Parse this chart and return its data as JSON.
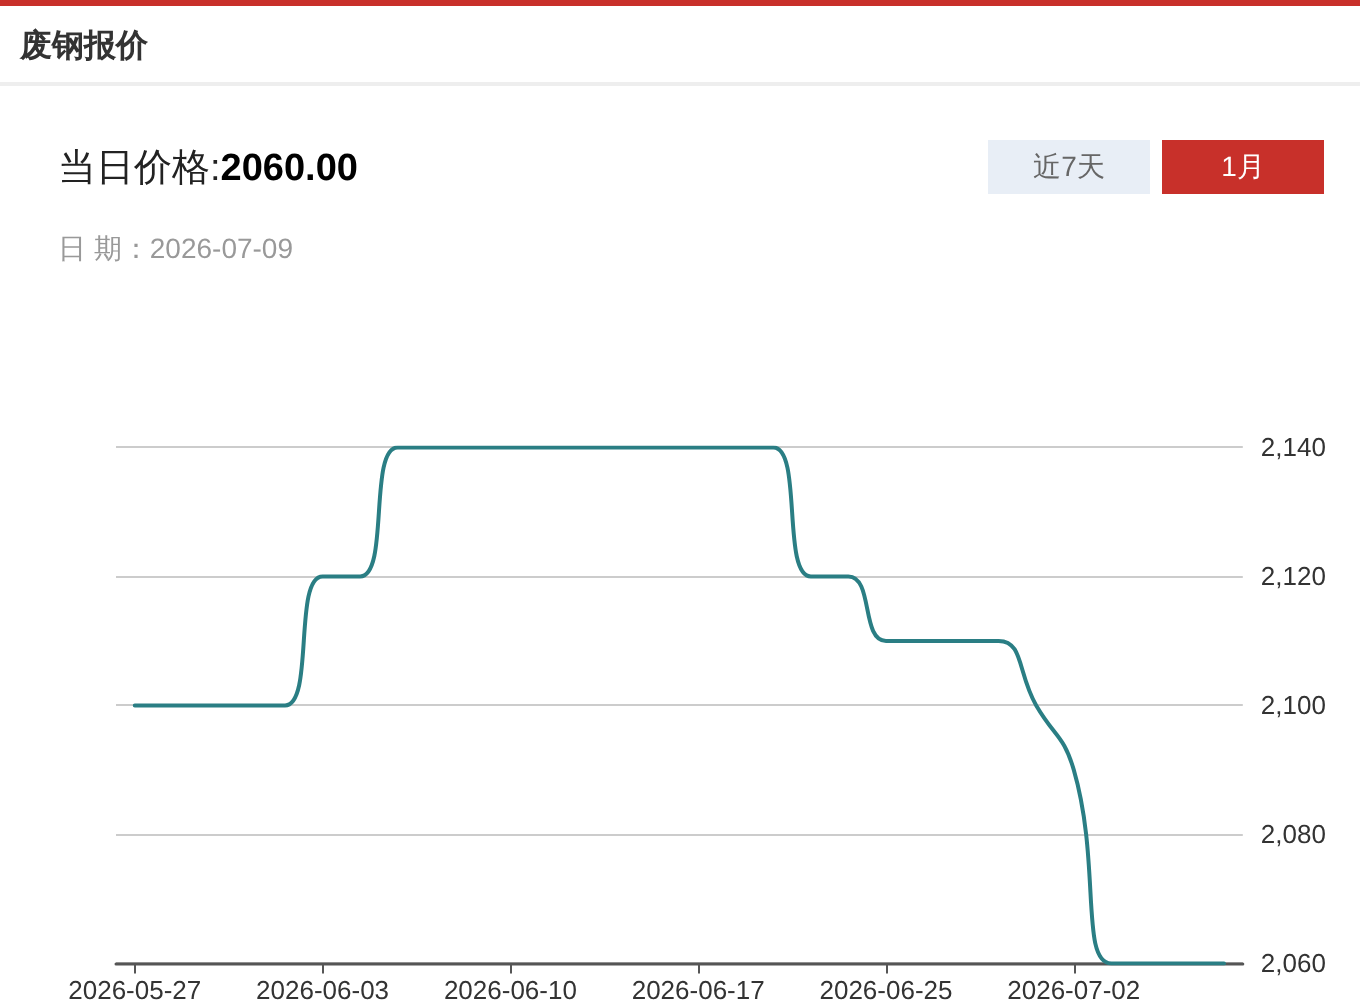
{
  "chart_data": {
    "type": "line",
    "title": "废钢报价",
    "annotations": [
      "当日价格:",
      "2060.00",
      "日 期：2026-07-09",
      "近7天",
      "1月"
    ],
    "categories": [
      "2026-05-27",
      null,
      null,
      null,
      null,
      "2026-06-03",
      null,
      null,
      null,
      null,
      "2026-06-10",
      null,
      null,
      null,
      null,
      "2026-06-17",
      null,
      null,
      null,
      null,
      "2026-06-25",
      null,
      null,
      null,
      null,
      "2026-07-02",
      null,
      null,
      null,
      null
    ],
    "series": [
      {
        "color": "#2a7e84",
        "values": [
          2100,
          2100,
          2100,
          2100,
          2100,
          2120,
          2120,
          2140,
          2140,
          2140,
          2140,
          2140,
          2140,
          2140,
          2140,
          2140,
          2140,
          2140,
          2120,
          2120,
          2110,
          2110,
          2110,
          2110,
          2100,
          2090,
          2060,
          2060,
          2060,
          2060
        ]
      }
    ],
    "ylim": [
      2060,
      2140
    ],
    "yticks": [
      {
        "value": 2060,
        "label": "2,060"
      },
      {
        "value": 2080,
        "label": "2,080"
      },
      {
        "value": 2100,
        "label": "2,100"
      },
      {
        "value": 2120,
        "label": "2,120"
      },
      {
        "value": 2140,
        "label": "2,140"
      }
    ],
    "grid": "y",
    "marker": "none",
    "line_style": "solid"
  }
}
